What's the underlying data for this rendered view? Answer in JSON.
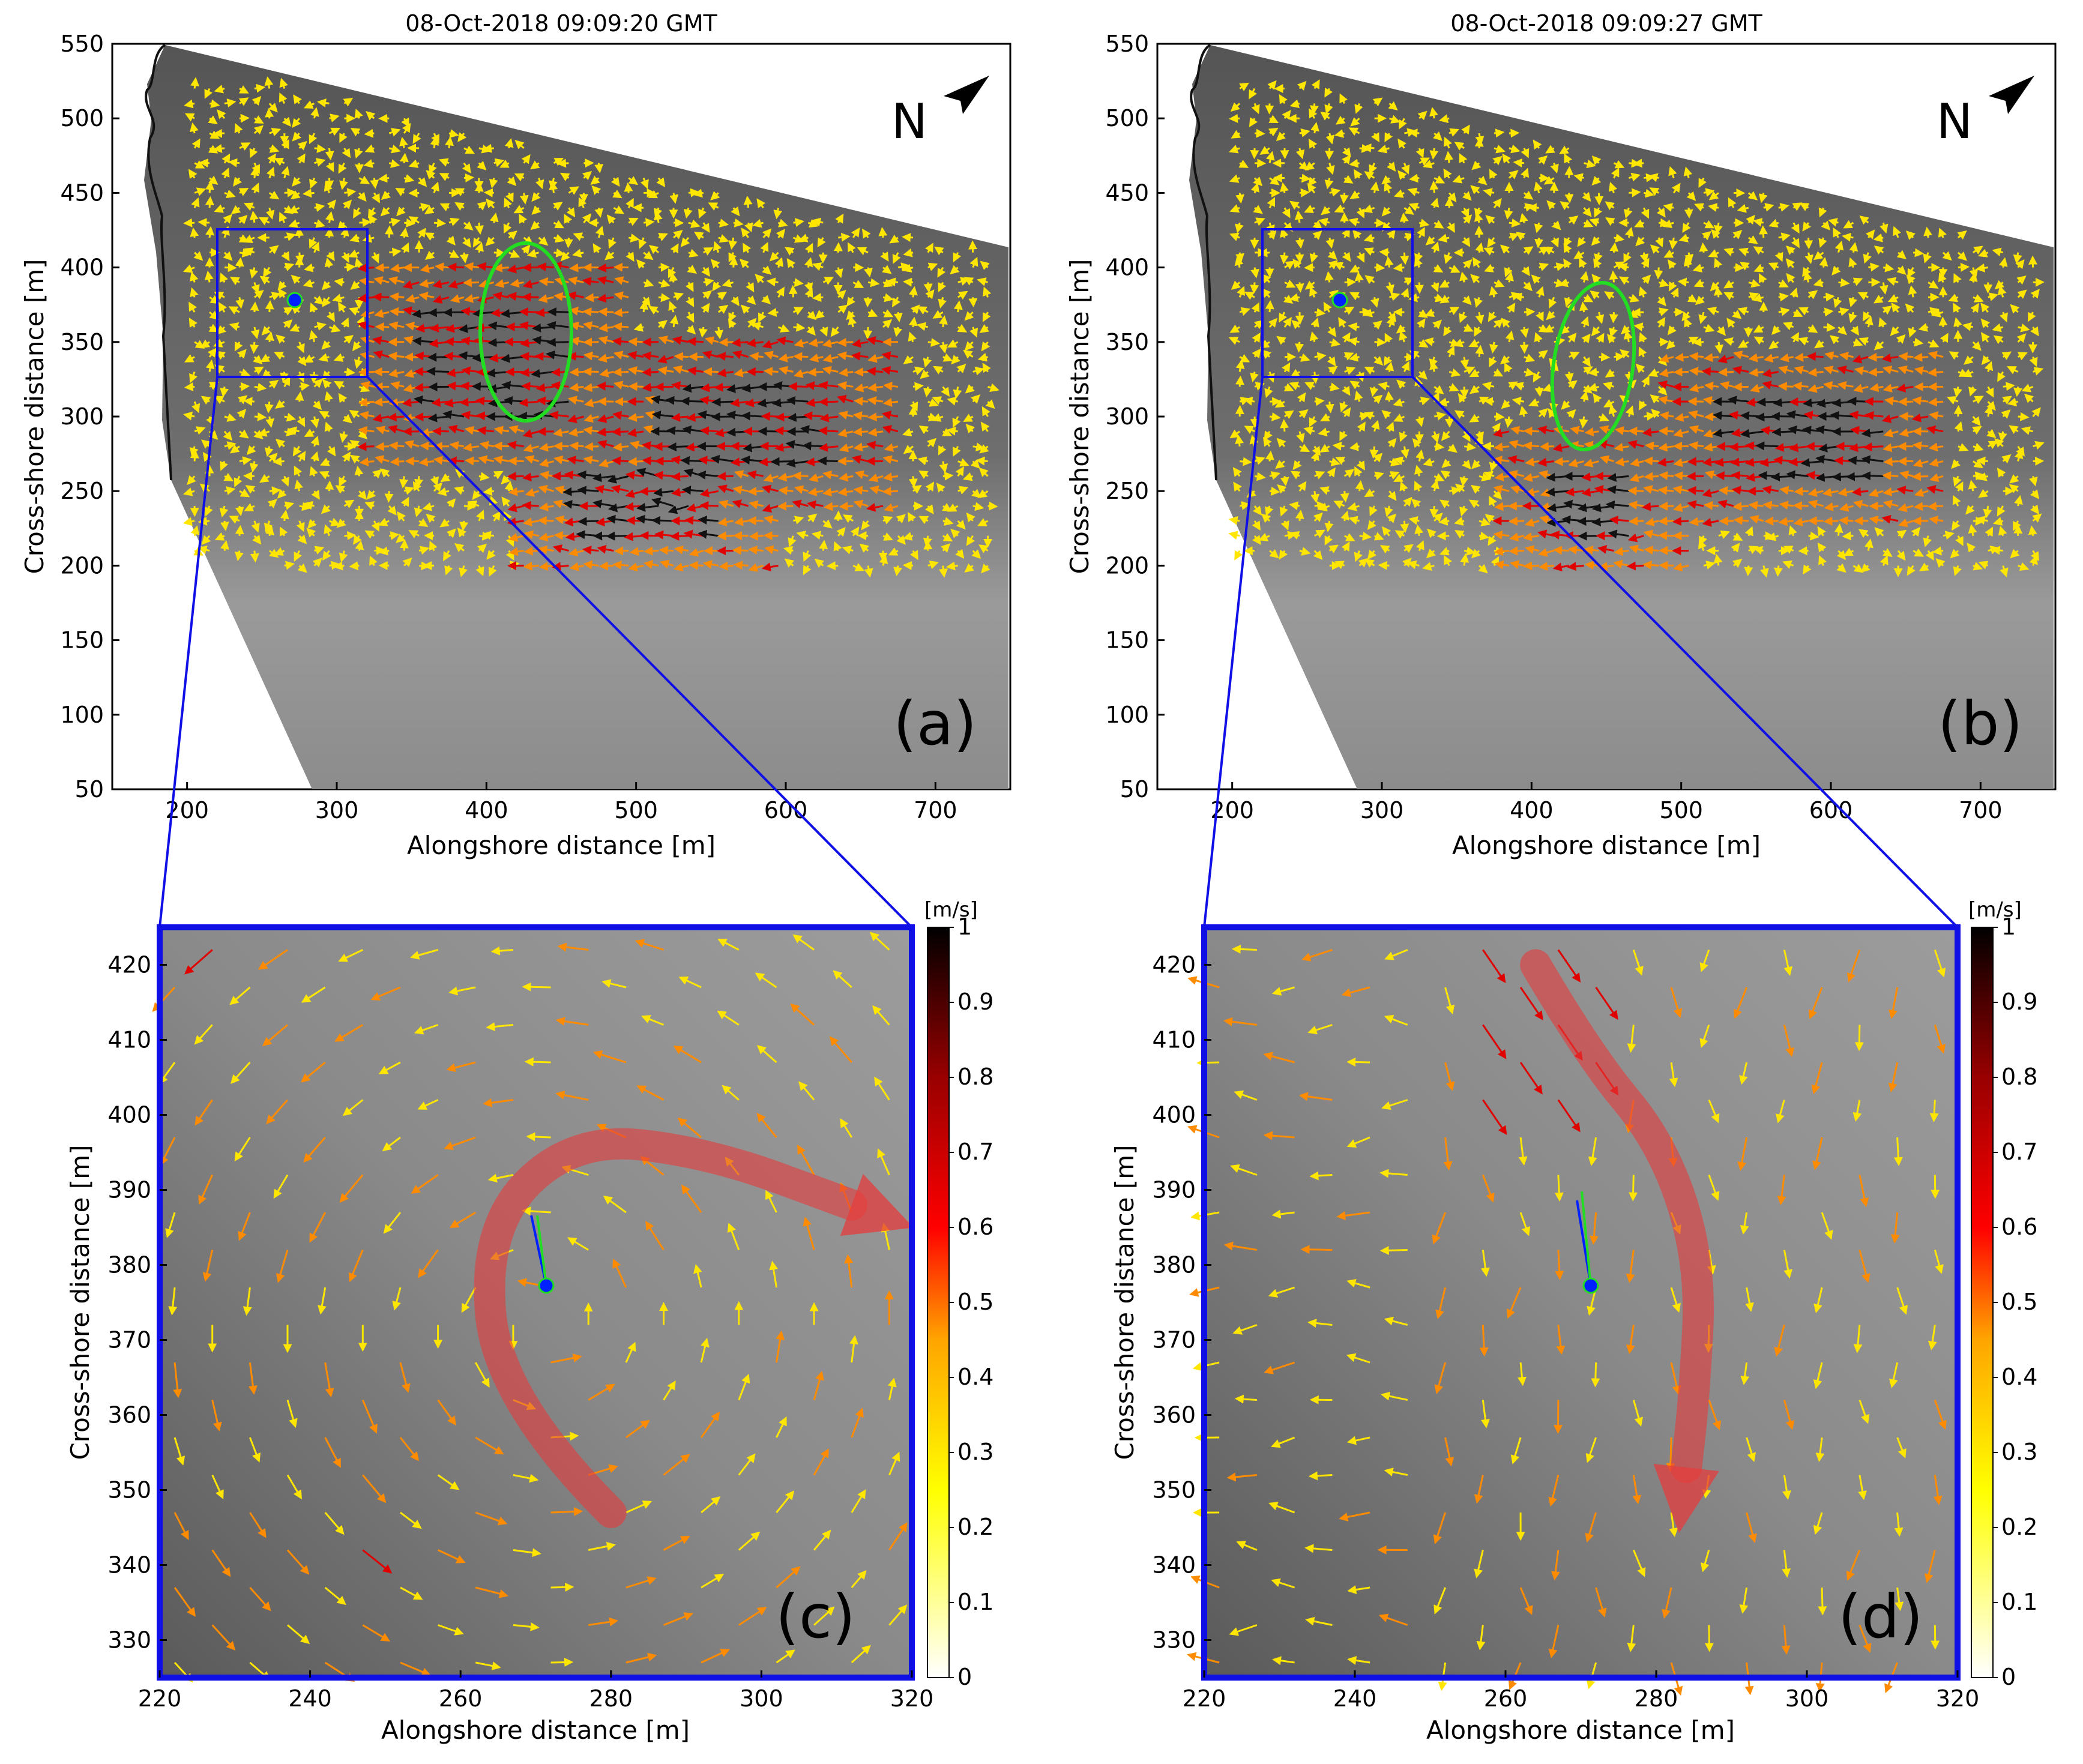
{
  "panels": {
    "a": {
      "title": "08-Oct-2018 09:09:20 GMT",
      "letter": "(a)"
    },
    "b": {
      "title": "08-Oct-2018 09:09:27 GMT",
      "letter": "(b)"
    },
    "c": {
      "letter": "(c)"
    },
    "d": {
      "letter": "(d)"
    }
  },
  "north_label": "N",
  "chart_data": [
    {
      "id": "a",
      "type": "quiver",
      "title": "08-Oct-2018 09:09:20 GMT",
      "xlabel": "Alongshore distance [m]",
      "ylabel": "Cross-shore distance [m]",
      "xlim": [
        150,
        750
      ],
      "ylim": [
        50,
        550
      ],
      "xticks": [
        200,
        300,
        400,
        500,
        600,
        700
      ],
      "yticks": [
        50,
        100,
        150,
        200,
        250,
        300,
        350,
        400,
        450,
        500,
        550
      ],
      "zoom_box": {
        "x": [
          220,
          320
        ],
        "y": [
          325,
          425
        ]
      },
      "rip_marker": {
        "x": 271,
        "y": 377
      },
      "vortex_outline": {
        "center_x": 415,
        "center_y": 342,
        "half_width": 32,
        "half_height": 48
      },
      "speed_clusters": [
        {
          "x": [
            460,
            560
          ],
          "y": [
            220,
            260
          ],
          "speed": "high"
        },
        {
          "x": [
            520,
            640
          ],
          "y": [
            270,
            320
          ],
          "speed": "high"
        },
        {
          "x": [
            360,
            460
          ],
          "y": [
            300,
            370
          ],
          "speed": "high"
        }
      ]
    },
    {
      "id": "b",
      "type": "quiver",
      "title": "08-Oct-2018 09:09:27 GMT",
      "xlabel": "Alongshore distance [m]",
      "ylabel": "Cross-shore distance [m]",
      "xlim": [
        150,
        750
      ],
      "ylim": [
        50,
        550
      ],
      "xticks": [
        200,
        300,
        400,
        500,
        600,
        700
      ],
      "yticks": [
        50,
        100,
        150,
        200,
        250,
        300,
        350,
        400,
        450,
        500,
        550
      ],
      "zoom_box": {
        "x": [
          220,
          320
        ],
        "y": [
          325,
          425
        ]
      },
      "rip_marker": {
        "x": 271,
        "y": 377
      },
      "vortex_outline": {
        "center_x": 415,
        "center_y": 333,
        "half_width": 28,
        "half_height": 55
      },
      "speed_clusters": [
        {
          "x": [
            530,
            640
          ],
          "y": [
            260,
            310
          ],
          "speed": "high"
        },
        {
          "x": [
            420,
            470
          ],
          "y": [
            215,
            260
          ],
          "speed": "high"
        }
      ]
    },
    {
      "id": "c",
      "type": "quiver",
      "xlabel": "Alongshore distance [m]",
      "ylabel": "Cross-shore distance [m]",
      "xlim": [
        220,
        320
      ],
      "ylim": [
        325,
        425
      ],
      "xticks": [
        220,
        240,
        260,
        280,
        300,
        320
      ],
      "yticks": [
        330,
        340,
        350,
        360,
        370,
        380,
        390,
        400,
        410,
        420
      ],
      "rip_marker": {
        "x": 271,
        "y": 377
      },
      "flow_arrow_path": [
        [
          280,
          347
        ],
        [
          265,
          362
        ],
        [
          263,
          385
        ],
        [
          275,
          397
        ],
        [
          293,
          395
        ],
        [
          312,
          388
        ]
      ],
      "colorbar": {
        "label": "[m/s]",
        "range": [
          0,
          1
        ],
        "ticks": [
          0,
          0.1,
          0.2,
          0.3,
          0.4,
          0.5,
          0.6,
          0.7,
          0.8,
          0.9,
          1
        ]
      }
    },
    {
      "id": "d",
      "type": "quiver",
      "xlabel": "Alongshore distance [m]",
      "ylabel": "Cross-shore distance [m]",
      "xlim": [
        220,
        320
      ],
      "ylim": [
        325,
        425
      ],
      "xticks": [
        220,
        240,
        260,
        280,
        300,
        320
      ],
      "yticks": [
        330,
        340,
        350,
        360,
        370,
        380,
        390,
        400,
        410,
        420
      ],
      "rip_marker": {
        "x": 271,
        "y": 377
      },
      "flow_arrow_path": [
        [
          264,
          420
        ],
        [
          271,
          408
        ],
        [
          281,
          396
        ],
        [
          286,
          380
        ],
        [
          285,
          362
        ],
        [
          284,
          353
        ]
      ],
      "colorbar": {
        "label": "[m/s]",
        "range": [
          0,
          1
        ],
        "ticks": [
          0,
          0.1,
          0.2,
          0.3,
          0.4,
          0.5,
          0.6,
          0.7,
          0.8,
          0.9,
          1
        ]
      }
    }
  ]
}
